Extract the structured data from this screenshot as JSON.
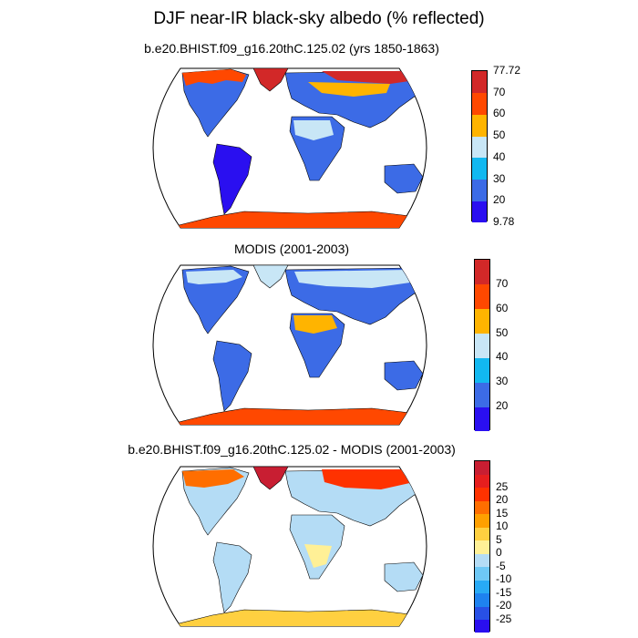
{
  "figure": {
    "title": "DJF near-IR black-sky albedo (% reflected)"
  },
  "panels": [
    {
      "subtitle": "b.e20.BHIST.f09_g16.20thC.125.02 (yrs 1850-1863)",
      "colorbar": {
        "colors": [
          "#2a0ff0",
          "#3c6be6",
          "#12b8f0",
          "#c8e6f6",
          "#ffb400",
          "#ff4800",
          "#d22828"
        ],
        "labels": [
          "9.78",
          "20",
          "30",
          "40",
          "50",
          "60",
          "70",
          "77.72"
        ]
      }
    },
    {
      "subtitle": "MODIS (2001-2003)",
      "colorbar": {
        "colors": [
          "#2a0ff0",
          "#3c6be6",
          "#12b8f0",
          "#c8e6f6",
          "#ffb400",
          "#ff4800",
          "#d22828"
        ],
        "labels": [
          "20",
          "30",
          "40",
          "50",
          "60",
          "70"
        ]
      }
    },
    {
      "subtitle": "b.e20.BHIST.f09_g16.20thC.125.02 - MODIS (2001-2003)",
      "colorbar": {
        "colors": [
          "#2a0ff0",
          "#2850e6",
          "#1e82f0",
          "#28aaf5",
          "#6ec8f5",
          "#b4dcf5",
          "#fff096",
          "#ffd040",
          "#ffa000",
          "#ff6e00",
          "#ff3200",
          "#e61e1e",
          "#c81e32"
        ],
        "labels": [
          "-25",
          "-20",
          "-15",
          "-10",
          "-5",
          "0",
          "5",
          "10",
          "15",
          "20",
          "25"
        ]
      }
    }
  ]
}
